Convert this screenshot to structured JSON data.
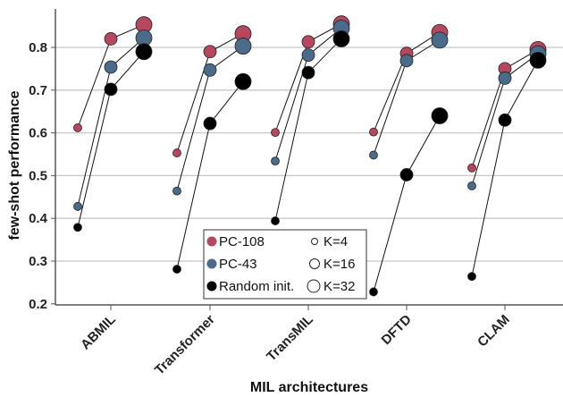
{
  "chart_data": {
    "type": "scatter",
    "xlabel": "MIL architectures",
    "ylabel": "few-shot performance",
    "ylim": [
      0.2,
      0.88
    ],
    "yticks": [
      0.2,
      0.3,
      0.4,
      0.5,
      0.6,
      0.7,
      0.8
    ],
    "grid": "horizontal",
    "categories": [
      "ABMIL",
      "Transformer",
      "TransMIL",
      "DFTD",
      "CLAM"
    ],
    "k_values": [
      "K=4",
      "K=16",
      "K=32"
    ],
    "legend_position": "bottom-center",
    "series": [
      {
        "name": "PC-108",
        "color": "#b5475e",
        "values": [
          [
            0.612,
            0.82,
            0.853
          ],
          [
            0.553,
            0.79,
            0.832
          ],
          [
            0.601,
            0.813,
            0.855
          ],
          [
            0.602,
            0.786,
            0.835
          ],
          [
            0.518,
            0.75,
            0.795
          ]
        ]
      },
      {
        "name": "PC-43",
        "color": "#4a6b8a",
        "values": [
          [
            0.428,
            0.754,
            0.822
          ],
          [
            0.464,
            0.747,
            0.803
          ],
          [
            0.534,
            0.782,
            0.845
          ],
          [
            0.548,
            0.769,
            0.817
          ],
          [
            0.476,
            0.728,
            0.785
          ]
        ]
      },
      {
        "name": "Random init.",
        "color": "#000000",
        "values": [
          [
            0.379,
            0.702,
            0.79
          ],
          [
            0.281,
            0.622,
            0.72
          ],
          [
            0.394,
            0.741,
            0.82
          ],
          [
            0.228,
            0.502,
            0.64
          ],
          [
            0.264,
            0.63,
            0.77
          ]
        ]
      }
    ]
  }
}
